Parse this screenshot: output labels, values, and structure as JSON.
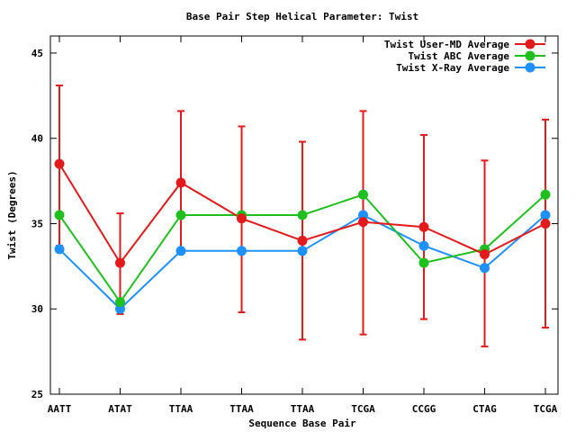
{
  "chart_data": {
    "type": "line",
    "title": "Base Pair Step Helical Parameter: Twist",
    "xlabel": "Sequence Base Pair",
    "ylabel": "Twist (Degrees)",
    "categories": [
      "AATT",
      "ATAT",
      "TTAA",
      "TTAA",
      "TTAA",
      "TCGA",
      "CCGG",
      "CTAG",
      "TCGA"
    ],
    "ylim": [
      25,
      46
    ],
    "yticks": [
      25,
      30,
      35,
      40,
      45
    ],
    "legend_position": "top-right",
    "grid": false,
    "series": [
      {
        "name": "Twist User-MD Average",
        "color": "#e31a1c",
        "values": [
          38.5,
          32.7,
          37.4,
          35.3,
          34.0,
          35.1,
          34.8,
          33.2,
          35.0
        ],
        "error_low": [
          33.7,
          29.7,
          33.3,
          29.8,
          28.2,
          28.5,
          29.4,
          27.8,
          28.9
        ],
        "error_high": [
          43.1,
          35.6,
          41.6,
          40.7,
          39.8,
          41.6,
          40.2,
          38.7,
          41.1
        ]
      },
      {
        "name": "Twist ABC Average",
        "color": "#1fbf1f",
        "values": [
          35.5,
          30.4,
          35.5,
          35.5,
          35.5,
          36.7,
          32.7,
          33.5,
          36.7
        ]
      },
      {
        "name": "Twist X-Ray Average",
        "color": "#1e90ff",
        "values": [
          33.5,
          30.0,
          33.4,
          33.4,
          33.4,
          35.5,
          33.7,
          32.4,
          35.5
        ]
      }
    ]
  }
}
